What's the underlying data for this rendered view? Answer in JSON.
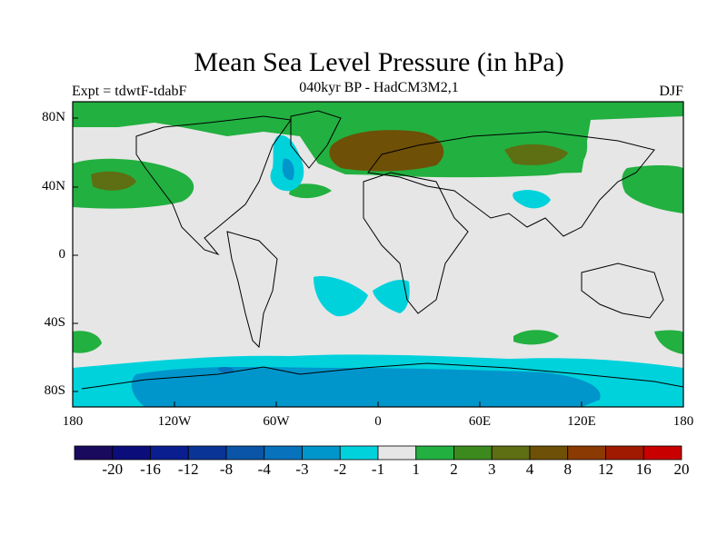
{
  "title": "Mean Sea Level Pressure (in hPa)",
  "subtitle": "040kyr BP - HadCM3M2,1",
  "left_label": "Expt = tdwtF-tdabF",
  "right_label": "DJF",
  "lat_ticks": [
    "80N",
    "40N",
    "0",
    "40S",
    "80S"
  ],
  "lon_ticks": [
    "180",
    "120W",
    "60W",
    "0",
    "60E",
    "120E",
    "180"
  ],
  "colorbar": {
    "labels": [
      "-20",
      "-16",
      "-12",
      "-8",
      "-4",
      "-3",
      "-2",
      "-1",
      "1",
      "2",
      "3",
      "4",
      "8",
      "12",
      "16",
      "20"
    ],
    "colors": [
      "#1a0a5e",
      "#0b0d7a",
      "#0a1e8f",
      "#0a3597",
      "#0a55a8",
      "#0872bd",
      "#0096cc",
      "#00d2dc",
      "#e6e6e6",
      "#22b040",
      "#3c8a1e",
      "#5e6e12",
      "#6e5006",
      "#8b3a04",
      "#a01a02",
      "#c80000"
    ]
  },
  "colors": {
    "land_ocean_neutral": "#e6e6e6",
    "green_light": "#22b040",
    "green_dark": "#5e6e12",
    "brown": "#6e5006",
    "cyan": "#00d2dc",
    "blue_mid": "#0096cc",
    "blue_dark": "#0872bd"
  }
}
